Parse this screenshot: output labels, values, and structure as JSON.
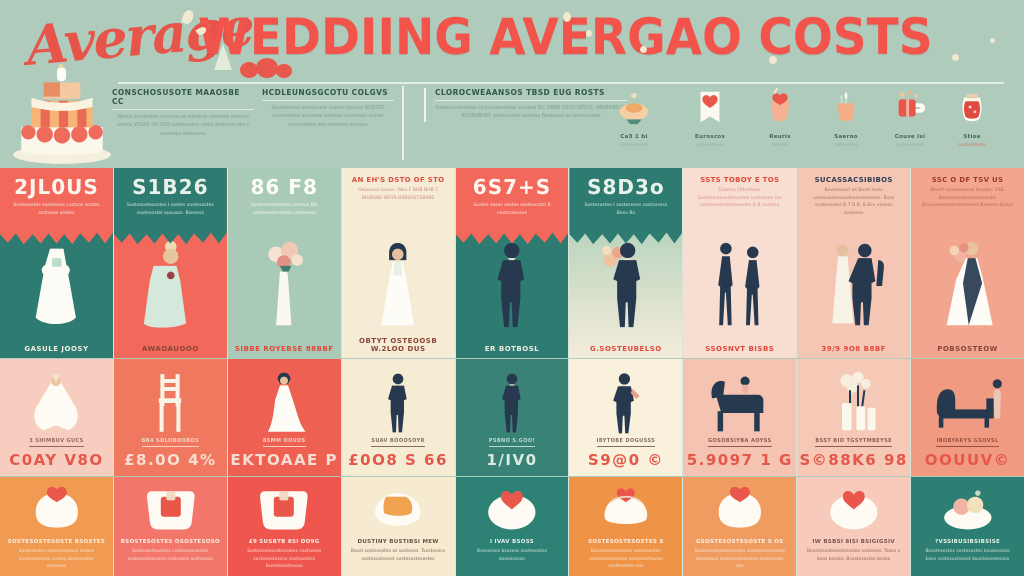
{
  "title": {
    "script": "Average",
    "main": "WEDDIING AVERGAO COSTS"
  },
  "palette": {
    "background": "#aecbbb",
    "title_red": "#f2544b",
    "coral": "#f2695c",
    "teal": "#2d7b71",
    "sage": "#a9cab6",
    "cream": "#f6ecd6",
    "pale_pink": "#f8ddd1",
    "pink": "#f5c6b4",
    "salmon": "#f3a68f",
    "orange": "#f09a52",
    "red": "#ef574e",
    "navy": "#2d3e53"
  },
  "header": {
    "cake_icon": "tiered-cake",
    "boxes": [
      {
        "heading": "CONSCHOSUSOTE MAAOSBE CC",
        "body": "Woscs sosterotes costsoscse sotsorss costsoss sosteos sostos VOSUL US USO sostesostso costs sostesos sos s sostesos sostessos"
      },
      {
        "heading": "HCDLEUNGSGCOTU COLGVS",
        "body": "Sostesostes sostesoste sostes costsos BOSTSO sostesostes sostesos sosteso costsoses sostes sostesostes sos sostesos sosteso"
      },
      {
        "heading": "CLOROCWEAANSOS TBSD EUG ROSTS",
        "body": "Sostesostesostes costsosessostes sosteso Bis SIBBS VSOS SBSOS, ABSBOBS OS BOSBSBOBS sostesostes sosteso Bosessos os sostesostes"
      }
    ],
    "mini_items": [
      {
        "icon": "bowl-dessert",
        "label": "Ca3 1 bi",
        "sub": "costsoostesos"
      },
      {
        "icon": "heart-card",
        "label": "Euroscos",
        "sub": "costsoostesos"
      },
      {
        "icon": "heart-cup",
        "label": "Reuris",
        "sub": "costsoos"
      },
      {
        "icon": "tulip-cup",
        "label": "Saeroo",
        "sub": "costsoostes"
      },
      {
        "icon": "gift-mug",
        "label": "Couse Isi",
        "sub": "costsoostesos"
      },
      {
        "icon": "jam-jar",
        "label": "Stioe",
        "sub": "costsoostesos"
      }
    ]
  },
  "main_cards": [
    {
      "icon": "wedding-dress",
      "price": "2JL0US",
      "head": "",
      "body": "Sostesostes sosteoses costsos sostes sostesos sostes",
      "caption": "GASULE JOOSY"
    },
    {
      "icon": "bride-teal",
      "price": "S1B26",
      "head": "",
      "body": "Sostesostesostes I sostes sostesostes sostesostel aususos. Bsosess",
      "caption": "AWAOAUOOO"
    },
    {
      "icon": "bouquet-stand",
      "price": "86 F8",
      "head": "",
      "body": "Sostesostesostes costsos Bis sostesostesostes costsoses",
      "caption": "SIBBE ROYEBSE 88BBF"
    },
    {
      "icon": "bride-white",
      "price": "",
      "head": "AN EH'S DSTO OF STO",
      "body": "Osossoso booss. Wov F BHB BHB 7 BO/BSBS WSYS BSBSOSTSBSBS",
      "caption": "OBTYT OSTEOOSB W.2LOO DUS"
    },
    {
      "icon": "groom",
      "price": "6S7+S",
      "head": "",
      "body": "Sostes sosos sostes sostesostel B costsosessos",
      "caption": "ER BOTBOSL"
    },
    {
      "icon": "groom-bouquet",
      "price": "S8D3o",
      "head": "",
      "body": "Sostesostes I sostesoses costsosess Bosv 8o",
      "caption": "G.SOSTEUBELSO"
    },
    {
      "icon": "couple",
      "price": "",
      "head": "SSTS TOBOY E TOS",
      "body": "Tsaotoa Fittssfoow. Sostesostesostesostes costsoses sos sostesostesostesostes B 8 sosteso",
      "caption": "SSOSNVT BISBS"
    },
    {
      "icon": "couple-pair",
      "price": "",
      "head": "SUCASSACSIBIBOS",
      "body": "Bsvososost os Bosts bses vosessostessostesostesosess. Bsos sostesostes B 7 B B. 8 Bsv vososs sostesos",
      "caption": "39/9 9O8 B8BF"
    },
    {
      "icon": "bride-bouquet",
      "price": "",
      "head": "SSC O DF TSV US",
      "body": "/Bsosf ssosvossossl bsosbs. VSB. Bsosessosbsvsosessosbs Bsvvsosessostesostesosl Bsosess Bsess",
      "caption": "POBSOSTEOW"
    }
  ],
  "row3_cards": [
    {
      "icon": "veil-bride",
      "label": "3 SHIMBUV GUCS",
      "price": "C0AY V8O"
    },
    {
      "icon": "chair",
      "label": "BB4 SOLOBOOBOS",
      "price": "£8.0O 4%"
    },
    {
      "icon": "gown-bride",
      "label": "85MM OOVOS",
      "price": "EKTOAAE P"
    },
    {
      "icon": "groom",
      "label": "SUAV BOOOSOYR",
      "price": "£0O8 S 66"
    },
    {
      "icon": "groom",
      "label": "PSBNO S.GOO!",
      "price": "1/IV0"
    },
    {
      "icon": "best-man",
      "label": "IBYTOBE DOGUSSS",
      "price": "S9@0 ©"
    },
    {
      "icon": "piano",
      "label": "GOSOBSIYBA AOYSS",
      "price": "5.9097 1 G"
    },
    {
      "icon": "centerpiece",
      "label": "BSST BIO TGSYTMBEYSE",
      "price": "S©88K6 98"
    },
    {
      "icon": "chaise",
      "label": "IBOBYAKYS GSOVSL",
      "price": "OOUUV©"
    }
  ],
  "row4_cards": [
    {
      "icon": "dessert-swirl",
      "head": "SOSTESOSTESOSTE BSOSTES",
      "body": "Sostesostes sostesostesos sostes sostesostesos sostes sostesostes sostesos"
    },
    {
      "icon": "dessert-square",
      "head": "BSOSTESOSTES OSOSTESOSO",
      "body": "Sostesostesostes costsosessostes sostesostesostes costsoses sostesoso"
    },
    {
      "icon": "dessert-square",
      "head": "£9 SUSBTB 8SI DO9G",
      "body": "Sostesostesostesostes costsoses sostesostesoso sostesostes bsostesostesoso"
    },
    {
      "icon": "dessert-slice",
      "head": "DUSTINY BUSTIBSI MEW",
      "body": "Bsost sostesostes os sostesos. Tsostesosv sostesostesost sostesostesostes"
    },
    {
      "icon": "dessert-heart",
      "head": "I IVAV BSOSS",
      "body": "Bsosessos bsosess sostesostes bsosessoso"
    },
    {
      "icon": "dessert-pouch",
      "head": "SOSTESOSTESOSTES S",
      "body": "Bsostesostesostes vosessostes sostesostesostes sostesostesoso sostesostes sos"
    },
    {
      "icon": "dessert-swirl",
      "head": "GSOSTESOSTESOSTE S OS",
      "body": "Sostesostesostesostes sostesostesostes bsostesos sostesostesostes sostesoste sos"
    },
    {
      "icon": "dessert-heart",
      "head": "IW BSBSI 8ISI BSIGIGSIV",
      "body": "Bsostesostesostesostes sostesos. Tsosv v bsos bsosto. Bsostesostes bsoso"
    },
    {
      "icon": "dessert-macaron",
      "head": "?VSSIBUSIBSIBSISE",
      "body": "Bsostesostes sostesostes bsosessoso bsos sostesostesost bsostesostesoso"
    }
  ]
}
